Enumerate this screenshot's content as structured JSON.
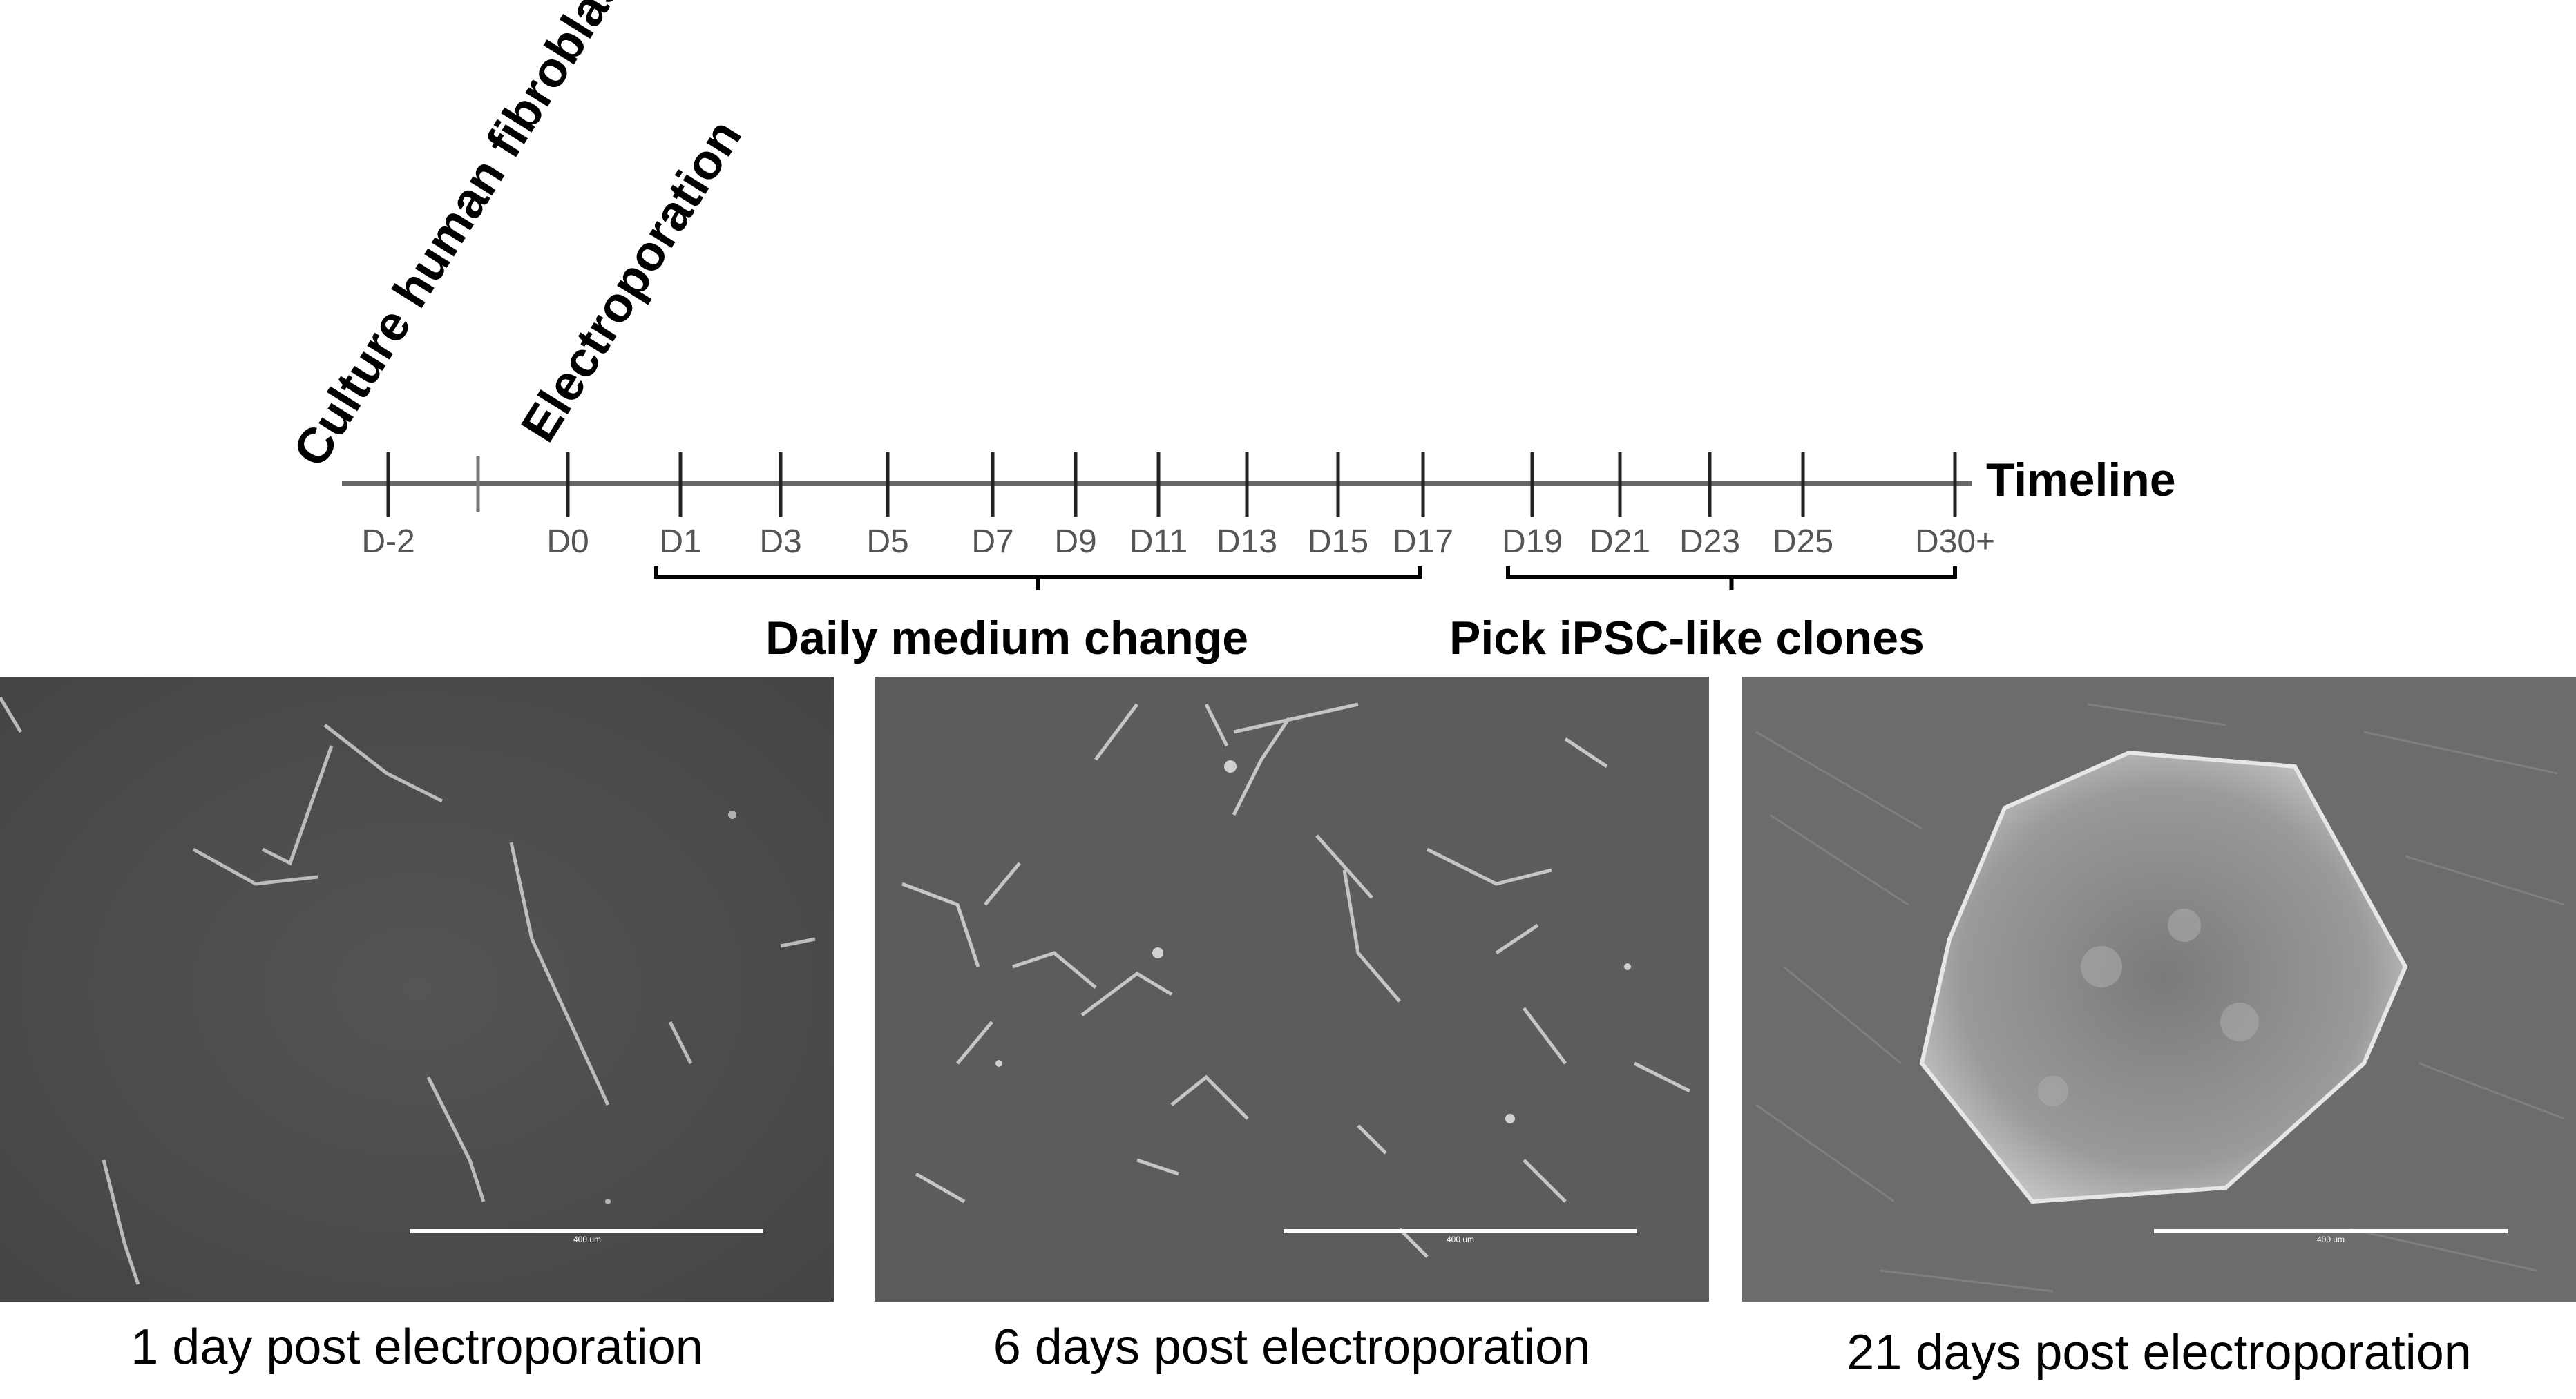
{
  "header": {
    "culture_label": "Culture human fibroblasts",
    "electroporation_label": "Electroporation",
    "timeline_label": "Timeline"
  },
  "timeline": {
    "ticks": [
      {
        "label": "D-2",
        "day": -2,
        "labeled": true
      },
      {
        "label": "",
        "day": -1,
        "labeled": false
      },
      {
        "label": "D0",
        "day": 0,
        "labeled": true
      },
      {
        "label": "D1",
        "day": 1,
        "labeled": true
      },
      {
        "label": "D3",
        "day": 3,
        "labeled": true
      },
      {
        "label": "D5",
        "day": 5,
        "labeled": true
      },
      {
        "label": "D7",
        "day": 7,
        "labeled": true
      },
      {
        "label": "D9",
        "day": 9,
        "labeled": true
      },
      {
        "label": "D11",
        "day": 11,
        "labeled": true
      },
      {
        "label": "D13",
        "day": 13,
        "labeled": true
      },
      {
        "label": "D15",
        "day": 15,
        "labeled": true
      },
      {
        "label": "D17",
        "day": 17,
        "labeled": true
      },
      {
        "label": "D19",
        "day": 19,
        "labeled": true
      },
      {
        "label": "D21",
        "day": 21,
        "labeled": true
      },
      {
        "label": "D23",
        "day": 23,
        "labeled": true
      },
      {
        "label": "D25",
        "day": 25,
        "labeled": true
      },
      {
        "label": "D30+",
        "day": 30,
        "labeled": true
      }
    ],
    "phases": [
      {
        "label": "Daily medium change",
        "from": "D1",
        "to": "D17"
      },
      {
        "label": "Pick iPSC-like clones",
        "from": "D19",
        "to": "D30+"
      }
    ]
  },
  "panels": [
    {
      "caption": "1 day post electroporation",
      "scale_text": "400 um",
      "bg": "#4a4a4a"
    },
    {
      "caption": "6 days post electroporation",
      "scale_text": "400 um",
      "bg": "#5a5a5a"
    },
    {
      "caption": "21 days post electroporation",
      "scale_text": "400 um",
      "bg": "#6a6a6a"
    }
  ]
}
